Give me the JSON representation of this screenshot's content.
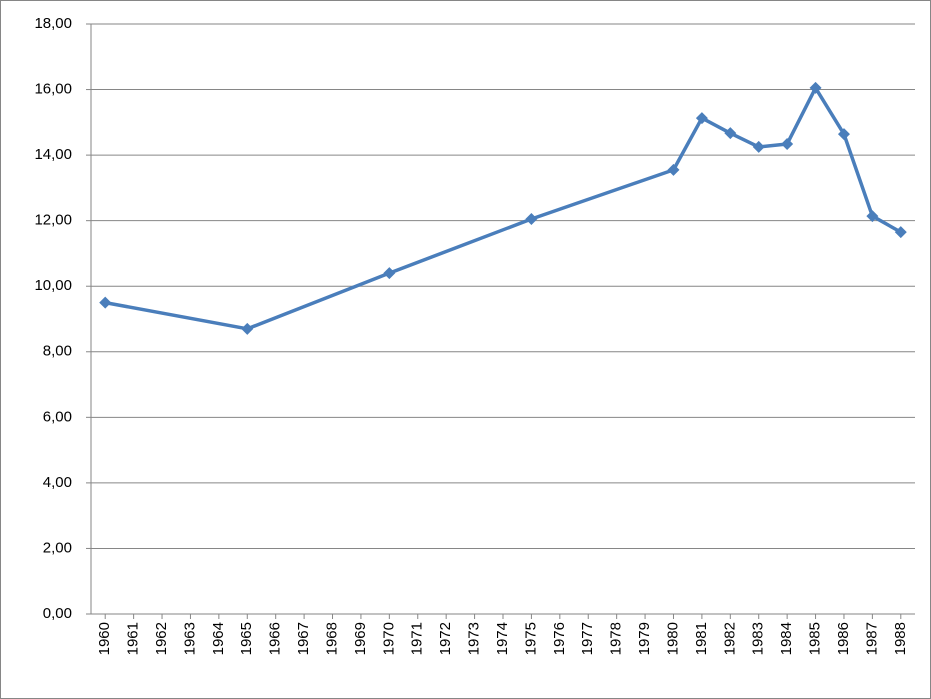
{
  "chart_data": {
    "type": "line",
    "x": [
      1960,
      1965,
      1970,
      1975,
      1980,
      1981,
      1982,
      1983,
      1984,
      1985,
      1986,
      1987,
      1988
    ],
    "series": [
      {
        "color": "#4a7ebb",
        "values": [
          9.5,
          8.7,
          10.4,
          12.05,
          13.55,
          15.13,
          14.67,
          14.25,
          14.34,
          16.05,
          14.64,
          12.14,
          11.65
        ]
      }
    ],
    "xlim": [
      1959.5,
      1988.5
    ],
    "xticks": [
      1960,
      1961,
      1962,
      1963,
      1964,
      1965,
      1966,
      1967,
      1968,
      1969,
      1970,
      1971,
      1972,
      1973,
      1974,
      1975,
      1976,
      1977,
      1978,
      1979,
      1980,
      1981,
      1982,
      1983,
      1984,
      1985,
      1986,
      1987,
      1988
    ],
    "ylim": [
      0,
      18
    ],
    "yticks": [
      {
        "value": 0,
        "label": "0,00"
      },
      {
        "value": 2,
        "label": "2,00"
      },
      {
        "value": 4,
        "label": "4,00"
      },
      {
        "value": 6,
        "label": "6,00"
      },
      {
        "value": 8,
        "label": "8,00"
      },
      {
        "value": 10,
        "label": "10,00"
      },
      {
        "value": 12,
        "label": "12,00"
      },
      {
        "value": 14,
        "label": "14,00"
      },
      {
        "value": 16,
        "label": "16,00"
      },
      {
        "value": 18,
        "label": "18,00"
      }
    ],
    "grid": true
  }
}
